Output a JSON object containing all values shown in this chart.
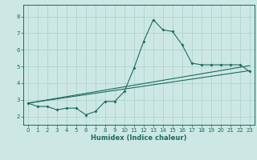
{
  "title": "",
  "xlabel": "Humidex (Indice chaleur)",
  "xlim": [
    -0.5,
    23.5
  ],
  "ylim": [
    1.5,
    8.7
  ],
  "bg_color": "#cde8e4",
  "line_color": "#1a6b5e",
  "grid_color": "#a8d0ca",
  "xticks": [
    0,
    1,
    2,
    3,
    4,
    5,
    6,
    7,
    8,
    9,
    10,
    11,
    12,
    13,
    14,
    15,
    16,
    17,
    18,
    19,
    20,
    21,
    22,
    23
  ],
  "yticks": [
    2,
    3,
    4,
    5,
    6,
    7,
    8
  ],
  "line1_x": [
    0,
    1,
    2,
    3,
    4,
    5,
    6,
    7,
    8,
    9,
    10,
    11,
    12,
    13,
    14,
    15,
    16,
    17,
    18,
    19,
    20,
    21,
    22,
    23
  ],
  "line1_y": [
    2.8,
    2.6,
    2.6,
    2.4,
    2.5,
    2.5,
    2.1,
    2.3,
    2.9,
    2.9,
    3.5,
    4.9,
    6.5,
    7.8,
    7.2,
    7.1,
    6.3,
    5.2,
    5.1,
    5.1,
    5.1,
    5.1,
    5.1,
    4.7
  ],
  "line2_x": [
    0,
    23
  ],
  "line2_y": [
    2.8,
    4.75
  ],
  "line3_x": [
    0,
    23
  ],
  "line3_y": [
    2.8,
    5.05
  ],
  "xlabel_fontsize": 6.0,
  "tick_fontsize": 5.0
}
